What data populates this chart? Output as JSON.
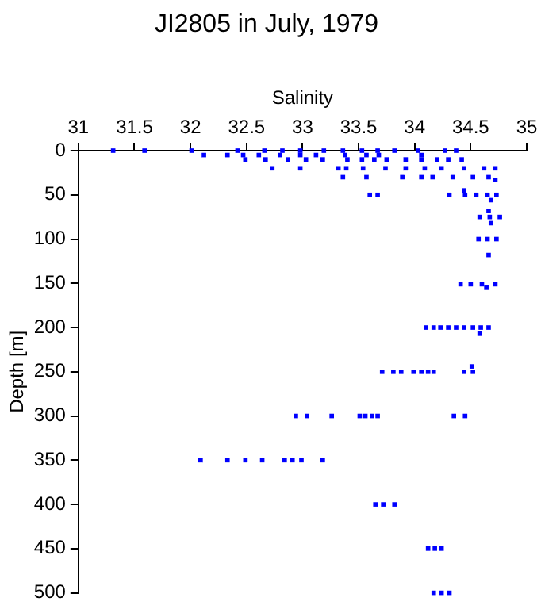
{
  "chart_data": {
    "type": "scatter",
    "title": "JI2805 in July, 1979",
    "xlabel": "Salinity",
    "ylabel": "Depth [m]",
    "xlim": [
      31,
      35
    ],
    "xticks": [
      31,
      31.5,
      32,
      32.5,
      33,
      33.5,
      34,
      34.5,
      35
    ],
    "ylim": [
      500,
      0
    ],
    "yticks": [
      0,
      50,
      100,
      150,
      200,
      250,
      300,
      350,
      400,
      450,
      500
    ],
    "grid": false,
    "legend": false,
    "marker": "square",
    "series": [
      {
        "color": "#0000ff",
        "x": [
          31.31,
          31.59,
          32.01,
          32.42,
          32.66,
          32.82,
          32.98,
          33.19,
          33.36,
          33.53,
          33.67,
          33.82,
          34.03,
          34.27,
          34.37,
          32.12,
          32.33,
          32.47,
          32.61,
          32.8,
          32.98,
          33.12,
          33.38,
          33.57,
          33.68,
          34.06,
          32.49,
          32.67,
          32.87,
          33.03,
          33.18,
          33.4,
          33.53,
          33.64,
          33.75,
          33.92,
          34.06,
          34.2,
          34.3,
          34.42,
          32.73,
          32.98,
          33.32,
          33.39,
          33.54,
          33.74,
          33.92,
          34.09,
          34.24,
          34.44,
          34.62,
          34.72,
          33.36,
          33.57,
          33.89,
          34.06,
          34.16,
          34.34,
          34.52,
          34.66,
          34.72,
          34.44,
          33.6,
          33.67,
          34.31,
          34.45,
          34.55,
          34.65,
          34.73,
          34.68,
          34.66,
          34.58,
          34.67,
          34.76,
          34.68,
          34.57,
          34.65,
          34.73,
          34.66,
          34.41,
          34.5,
          34.6,
          34.72,
          34.64,
          34.1,
          34.17,
          34.23,
          34.3,
          34.37,
          34.44,
          34.52,
          34.59,
          34.66,
          34.58,
          34.51,
          33.71,
          33.81,
          33.88,
          33.99,
          34.06,
          34.12,
          34.17,
          34.44,
          34.52,
          32.94,
          33.04,
          33.26,
          33.51,
          33.56,
          33.62,
          33.67,
          34.35,
          34.45,
          32.09,
          32.33,
          32.49,
          32.64,
          32.84,
          32.91,
          32.99,
          33.18,
          33.65,
          33.72,
          33.82,
          34.12,
          34.18,
          34.24,
          34.17,
          34.24,
          34.31
        ],
        "values": [
          0,
          0,
          0,
          0,
          0,
          0,
          0,
          0,
          0,
          0,
          0,
          0,
          0,
          0,
          0,
          5,
          5,
          5,
          5,
          5,
          5,
          5,
          5,
          5,
          5,
          5,
          10,
          10,
          10,
          10,
          10,
          10,
          10,
          10,
          10,
          10,
          10,
          10,
          10,
          10,
          20,
          20,
          20,
          20,
          20,
          20,
          20,
          20,
          20,
          20,
          20,
          20,
          30,
          30,
          30,
          30,
          30,
          30,
          30,
          30,
          33,
          45,
          50,
          50,
          50,
          50,
          50,
          50,
          50,
          56,
          68,
          75,
          75,
          75,
          82,
          100,
          100,
          100,
          118,
          151,
          151,
          151,
          151,
          155,
          200,
          200,
          200,
          200,
          200,
          200,
          200,
          200,
          200,
          207,
          244,
          250,
          250,
          250,
          250,
          250,
          250,
          250,
          250,
          250,
          300,
          300,
          300,
          300,
          300,
          300,
          300,
          300,
          300,
          350,
          350,
          350,
          350,
          350,
          350,
          350,
          350,
          400,
          400,
          400,
          450,
          450,
          450,
          500,
          500,
          500
        ]
      }
    ]
  }
}
